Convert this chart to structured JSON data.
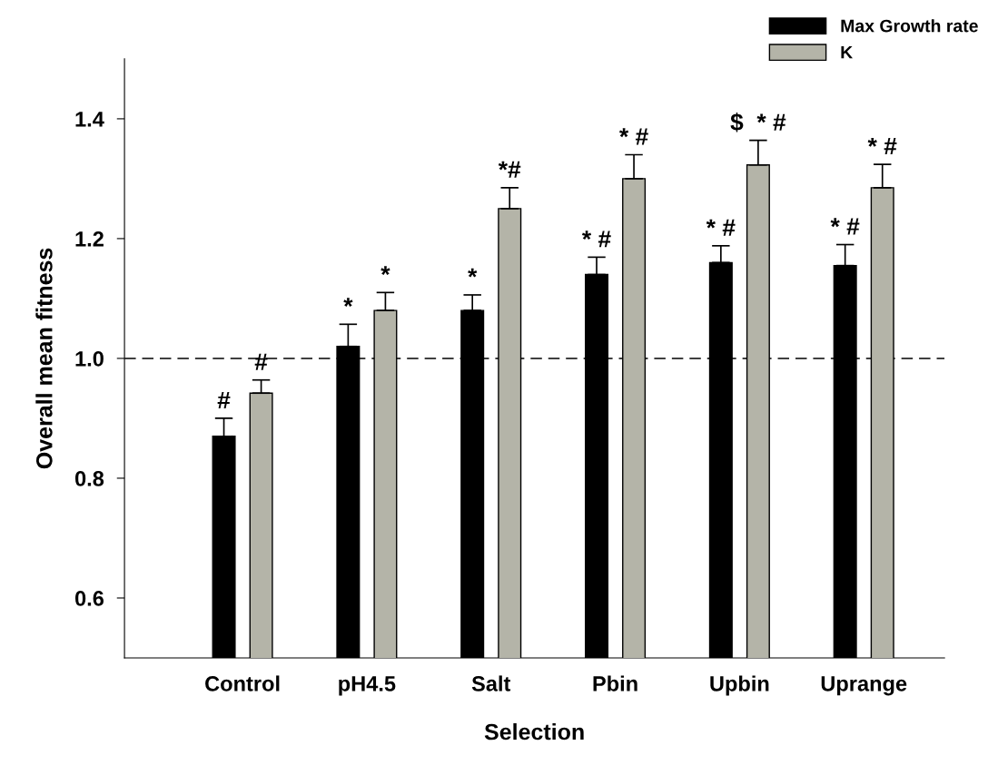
{
  "chart_data": {
    "type": "bar",
    "xlabel": "Selection",
    "ylabel": "Overall mean fitness",
    "categories": [
      "Control",
      "pH4.5",
      "Salt",
      "Pbin",
      "Upbin",
      "Uprange"
    ],
    "series": [
      {
        "name": "Max Growth rate",
        "color": "#000000",
        "values": [
          0.87,
          1.02,
          1.08,
          1.14,
          1.16,
          1.155
        ],
        "errors": [
          [
            0.87,
            0.9
          ],
          [
            1.02,
            1.057
          ],
          [
            1.08,
            1.106
          ],
          [
            1.14,
            1.169
          ],
          [
            1.16,
            1.188
          ],
          [
            1.155,
            1.19
          ]
        ]
      },
      {
        "name": "K",
        "color": "#b4b4a8",
        "values": [
          0.942,
          1.08,
          1.25,
          1.3,
          1.323,
          1.285
        ],
        "errors": [
          [
            0.942,
            0.964
          ],
          [
            1.08,
            1.11
          ],
          [
            1.25,
            1.285
          ],
          [
            1.3,
            1.34
          ],
          [
            1.323,
            1.364
          ],
          [
            1.285,
            1.324
          ]
        ]
      }
    ],
    "ylim": [
      0.5,
      1.5
    ],
    "yticks": [
      {
        "value": 0.6,
        "label": "0.6"
      },
      {
        "value": 0.8,
        "label": "0.8"
      },
      {
        "value": 1.0,
        "label": "1.0"
      },
      {
        "value": 1.2,
        "label": "1.2"
      },
      {
        "value": 1.4,
        "label": "1.4"
      }
    ],
    "ref_lines": [
      {
        "axis": "y",
        "value": 1.0,
        "line_style": "dashed",
        "color": "#000000"
      }
    ],
    "annotations": [
      "#",
      "#",
      "*",
      "*",
      "*",
      "*#",
      "* #",
      "* #",
      "* #",
      "$  * #",
      "* #",
      "* #"
    ],
    "grid": false,
    "legend": "top right"
  }
}
